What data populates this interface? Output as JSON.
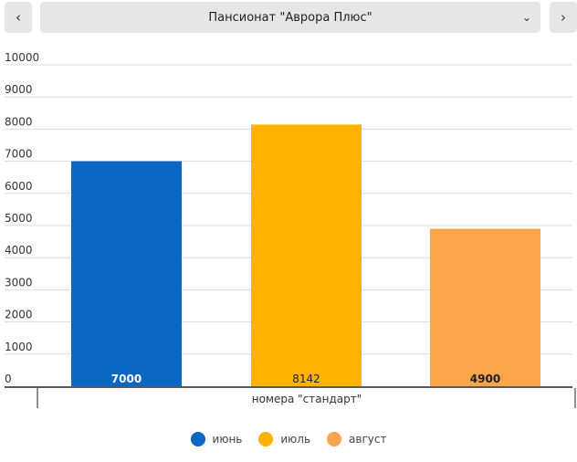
{
  "header": {
    "prev_icon": "chevron-left-icon",
    "next_icon": "chevron-right-icon",
    "select_value": "Пансионат \"Аврора Плюс\"",
    "select_icon": "chevron-down-icon"
  },
  "chart_data": {
    "type": "bar",
    "categories": [
      "номера \"стандарт\""
    ],
    "series": [
      {
        "name": "июнь",
        "values": [
          7000
        ],
        "color": "#0a67c2"
      },
      {
        "name": "июль",
        "values": [
          8142
        ],
        "color": "#ffb200"
      },
      {
        "name": "август",
        "values": [
          4900
        ],
        "color": "#f9a54b"
      }
    ],
    "yticks": [
      "0",
      "1000",
      "2000",
      "3000",
      "4000",
      "5000",
      "6000",
      "7000",
      "8000",
      "9000",
      "10000"
    ],
    "ylim": [
      0,
      10000
    ],
    "grid": true,
    "legend": "bottom-center",
    "data_labels": [
      "7000",
      "8142",
      "4900"
    ]
  }
}
